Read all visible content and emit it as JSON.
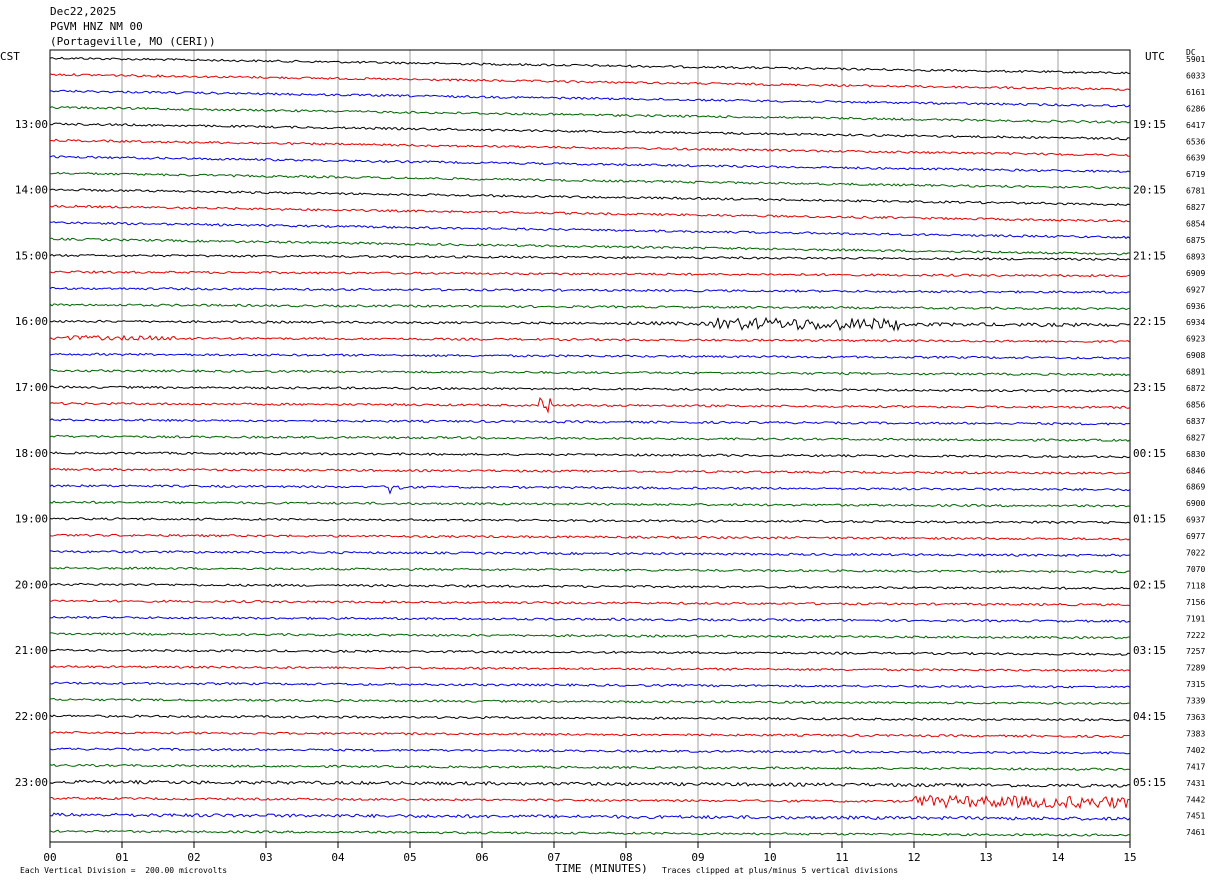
{
  "header": {
    "date": "Dec22,2025",
    "station": "PGVM HNZ NM 00",
    "location": "(Portageville, MO (CERI))"
  },
  "left_axis_label": "CST",
  "right_axis_label": "UTC",
  "dc_label": "DC",
  "footer": {
    "scale_note": "Each Vertical Division =  200.00 microvolts",
    "xlabel": "TIME (MINUTES)",
    "clip_note": "Traces clipped at plus/minus 5 vertical divisions"
  },
  "colors": {
    "cycle": [
      "#000000",
      "#e00000",
      "#0000e0",
      "#006400"
    ],
    "grid": "#a0a0a0"
  },
  "chart_data": {
    "type": "line",
    "title": "PGVM HNZ NM 00",
    "xlabel": "TIME (MINUTES)",
    "x_ticks": [
      "00",
      "01",
      "02",
      "03",
      "04",
      "05",
      "06",
      "07",
      "08",
      "09",
      "10",
      "11",
      "12",
      "13",
      "14",
      "15"
    ],
    "xlim": [
      0,
      15
    ],
    "left_hour_labels": [
      "13:00",
      "14:00",
      "15:00",
      "16:00",
      "17:00",
      "18:00",
      "19:00",
      "20:00",
      "21:00",
      "22:00",
      "23:00"
    ],
    "right_hour_labels": [
      "19:15",
      "20:15",
      "21:15",
      "22:15",
      "23:15",
      "00:15",
      "01:15",
      "02:15",
      "03:15",
      "04:15",
      "05:15"
    ],
    "dc_offsets": [
      5901,
      6033,
      6161,
      6286,
      6417,
      6536,
      6639,
      6719,
      6781,
      6827,
      6854,
      6875,
      6893,
      6909,
      6927,
      6936,
      6934,
      6923,
      6908,
      6891,
      6872,
      6856,
      6837,
      6827,
      6830,
      6846,
      6869,
      6900,
      6937,
      6977,
      7022,
      7070,
      7118,
      7156,
      7191,
      7222,
      7257,
      7289,
      7315,
      7339,
      7363,
      7383,
      7402,
      7417,
      7431,
      7442,
      7451,
      7461
    ],
    "notable_events": [
      {
        "trace": 16,
        "minute_start": 9.2,
        "minute_end": 11.8,
        "note": "elevated noise burst"
      },
      {
        "trace": 21,
        "minute_start": 6.8,
        "minute_end": 6.95,
        "note": "spike"
      },
      {
        "trace": 26,
        "minute_start": 4.7,
        "minute_end": 4.9,
        "note": "spike"
      },
      {
        "trace": 45,
        "minute_start": 12.0,
        "minute_end": 15.0,
        "note": "elevated noise"
      }
    ]
  }
}
